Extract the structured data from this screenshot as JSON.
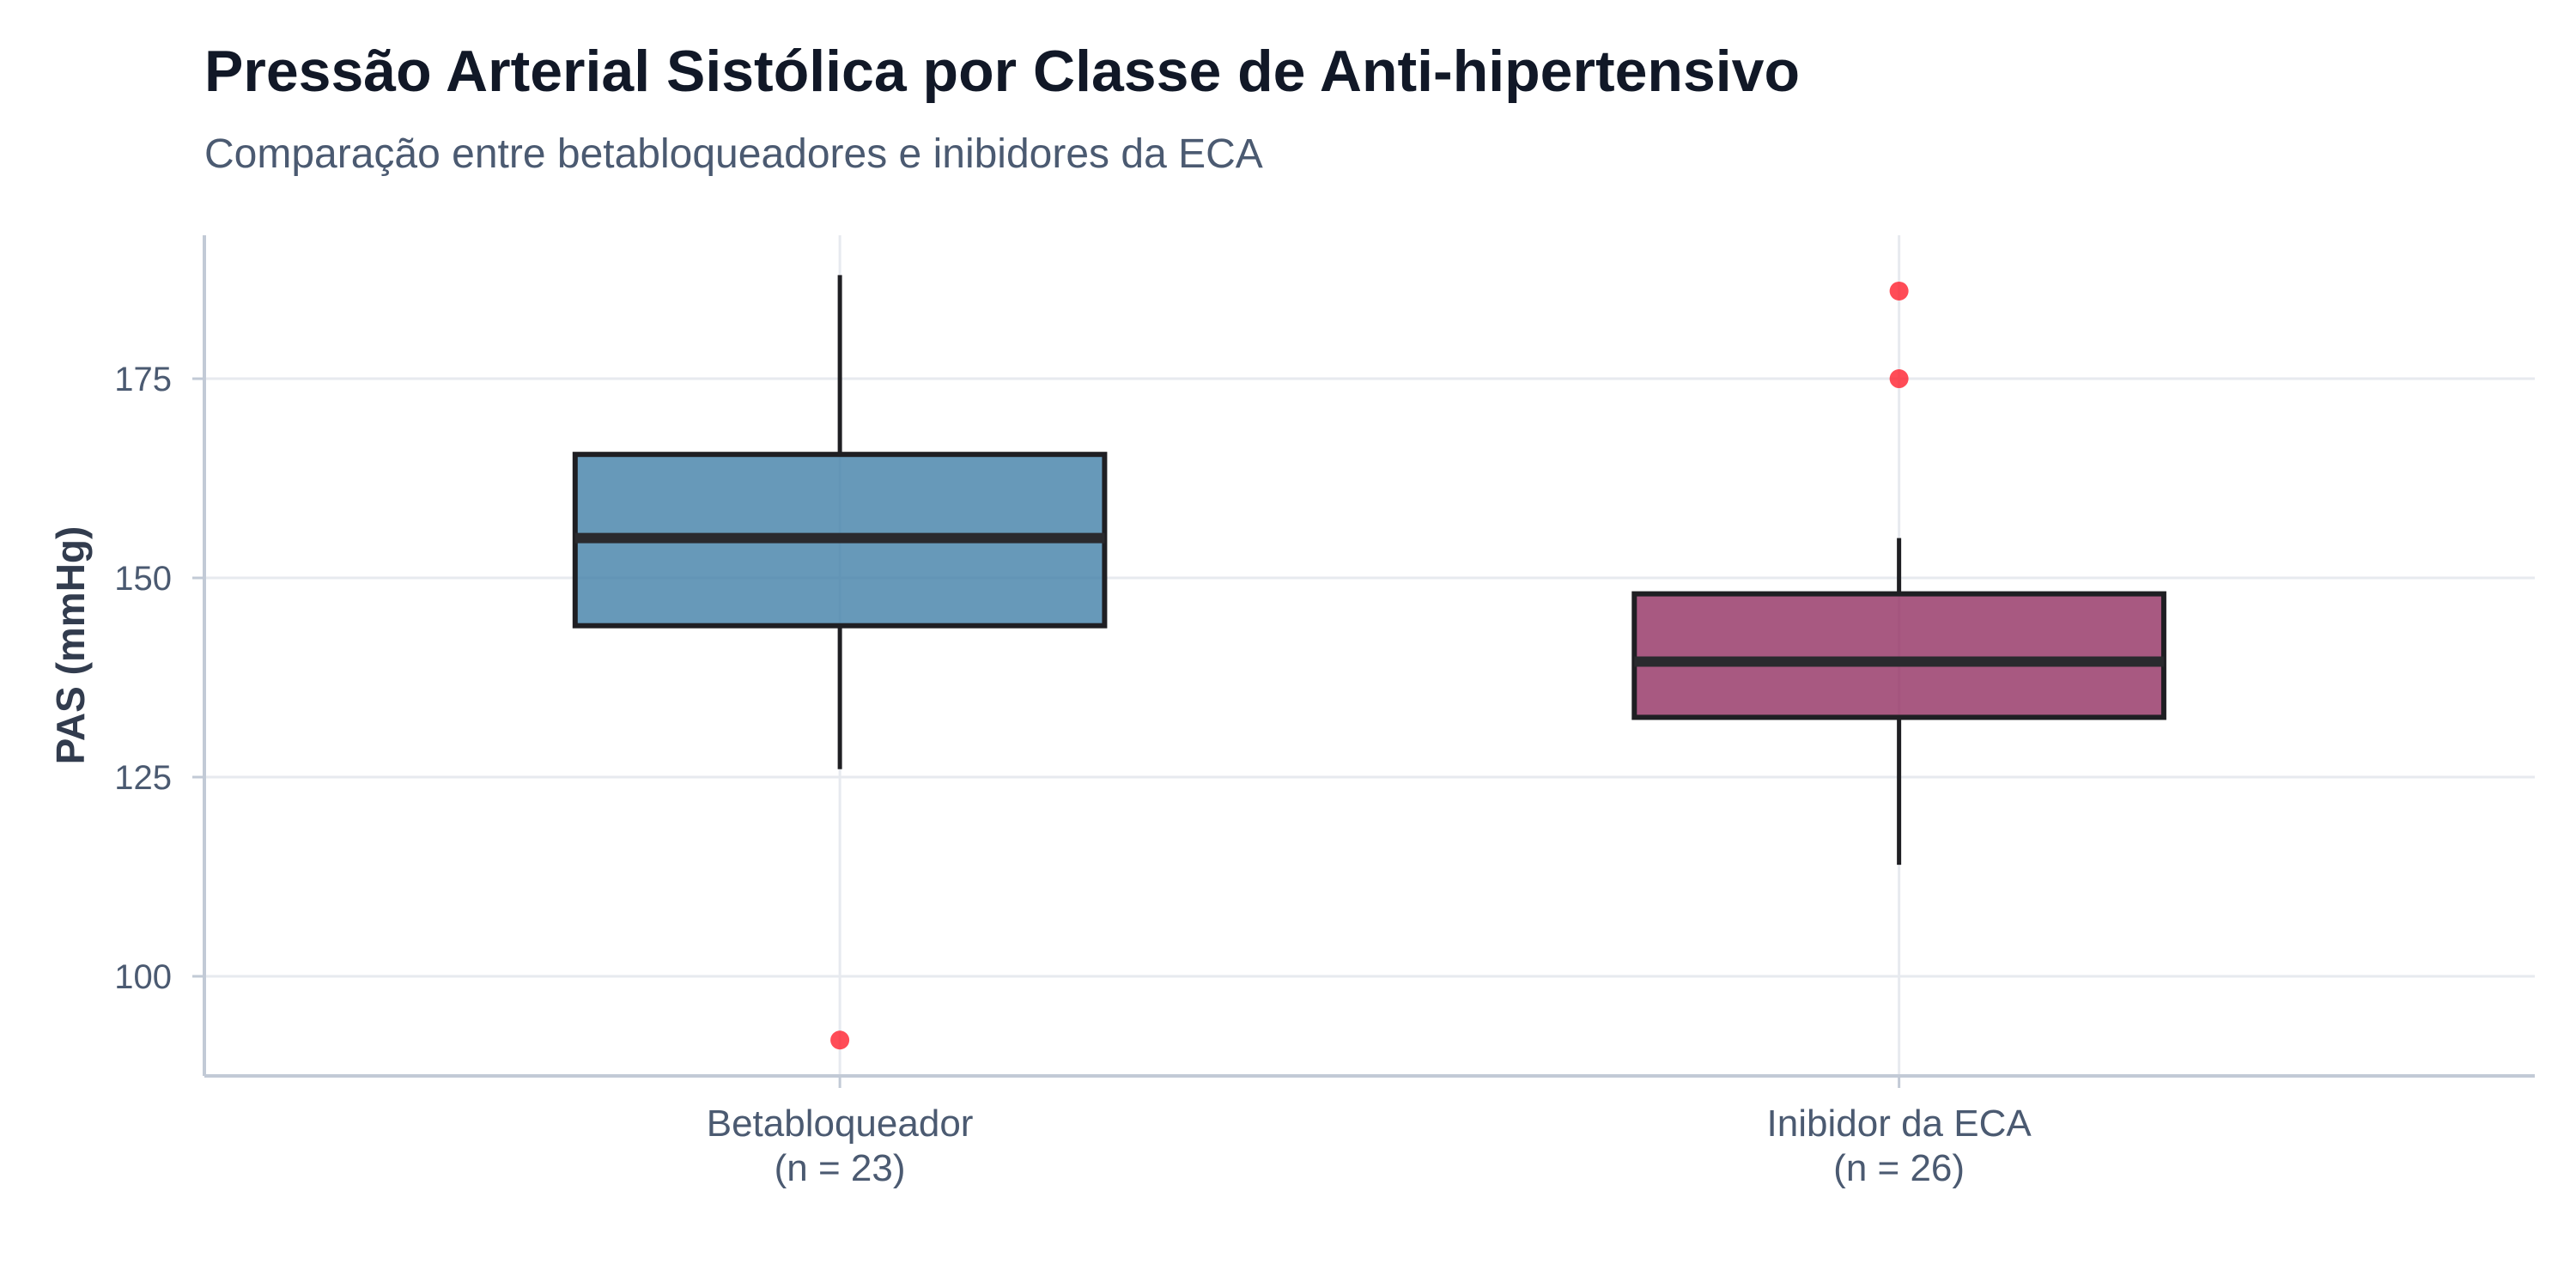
{
  "chart_data": {
    "type": "boxplot",
    "title": "Pressão Arterial Sistólica por Classe de Anti-hipertensivo",
    "subtitle": "Comparação entre betabloqueadores e inibidores da ECA",
    "xlabel": "",
    "ylabel": "PAS (mmHg)",
    "ylim": [
      87.5,
      193
    ],
    "yticks": [
      100,
      125,
      150,
      175
    ],
    "grid": true,
    "legend": "none",
    "categories": [
      {
        "name": "Betabloqueador",
        "n_label": "(n = 23)",
        "color": "#4682a9",
        "whisker_low": 126,
        "q1": 144,
        "median": 155,
        "q3": 165.5,
        "whisker_high": 188,
        "outliers": [
          92
        ]
      },
      {
        "name": "Inibidor da ECA",
        "n_label": "(n = 26)",
        "color": "#953465",
        "whisker_low": 114,
        "q1": 132.5,
        "median": 139.5,
        "q3": 148,
        "whisker_high": 155,
        "outliers": [
          175,
          186
        ]
      }
    ]
  },
  "colors": {
    "outlier": "#ff1f2d",
    "box_stroke": "#1f1f23",
    "grid": "#e7eaef",
    "axis": "#c2cad6"
  }
}
